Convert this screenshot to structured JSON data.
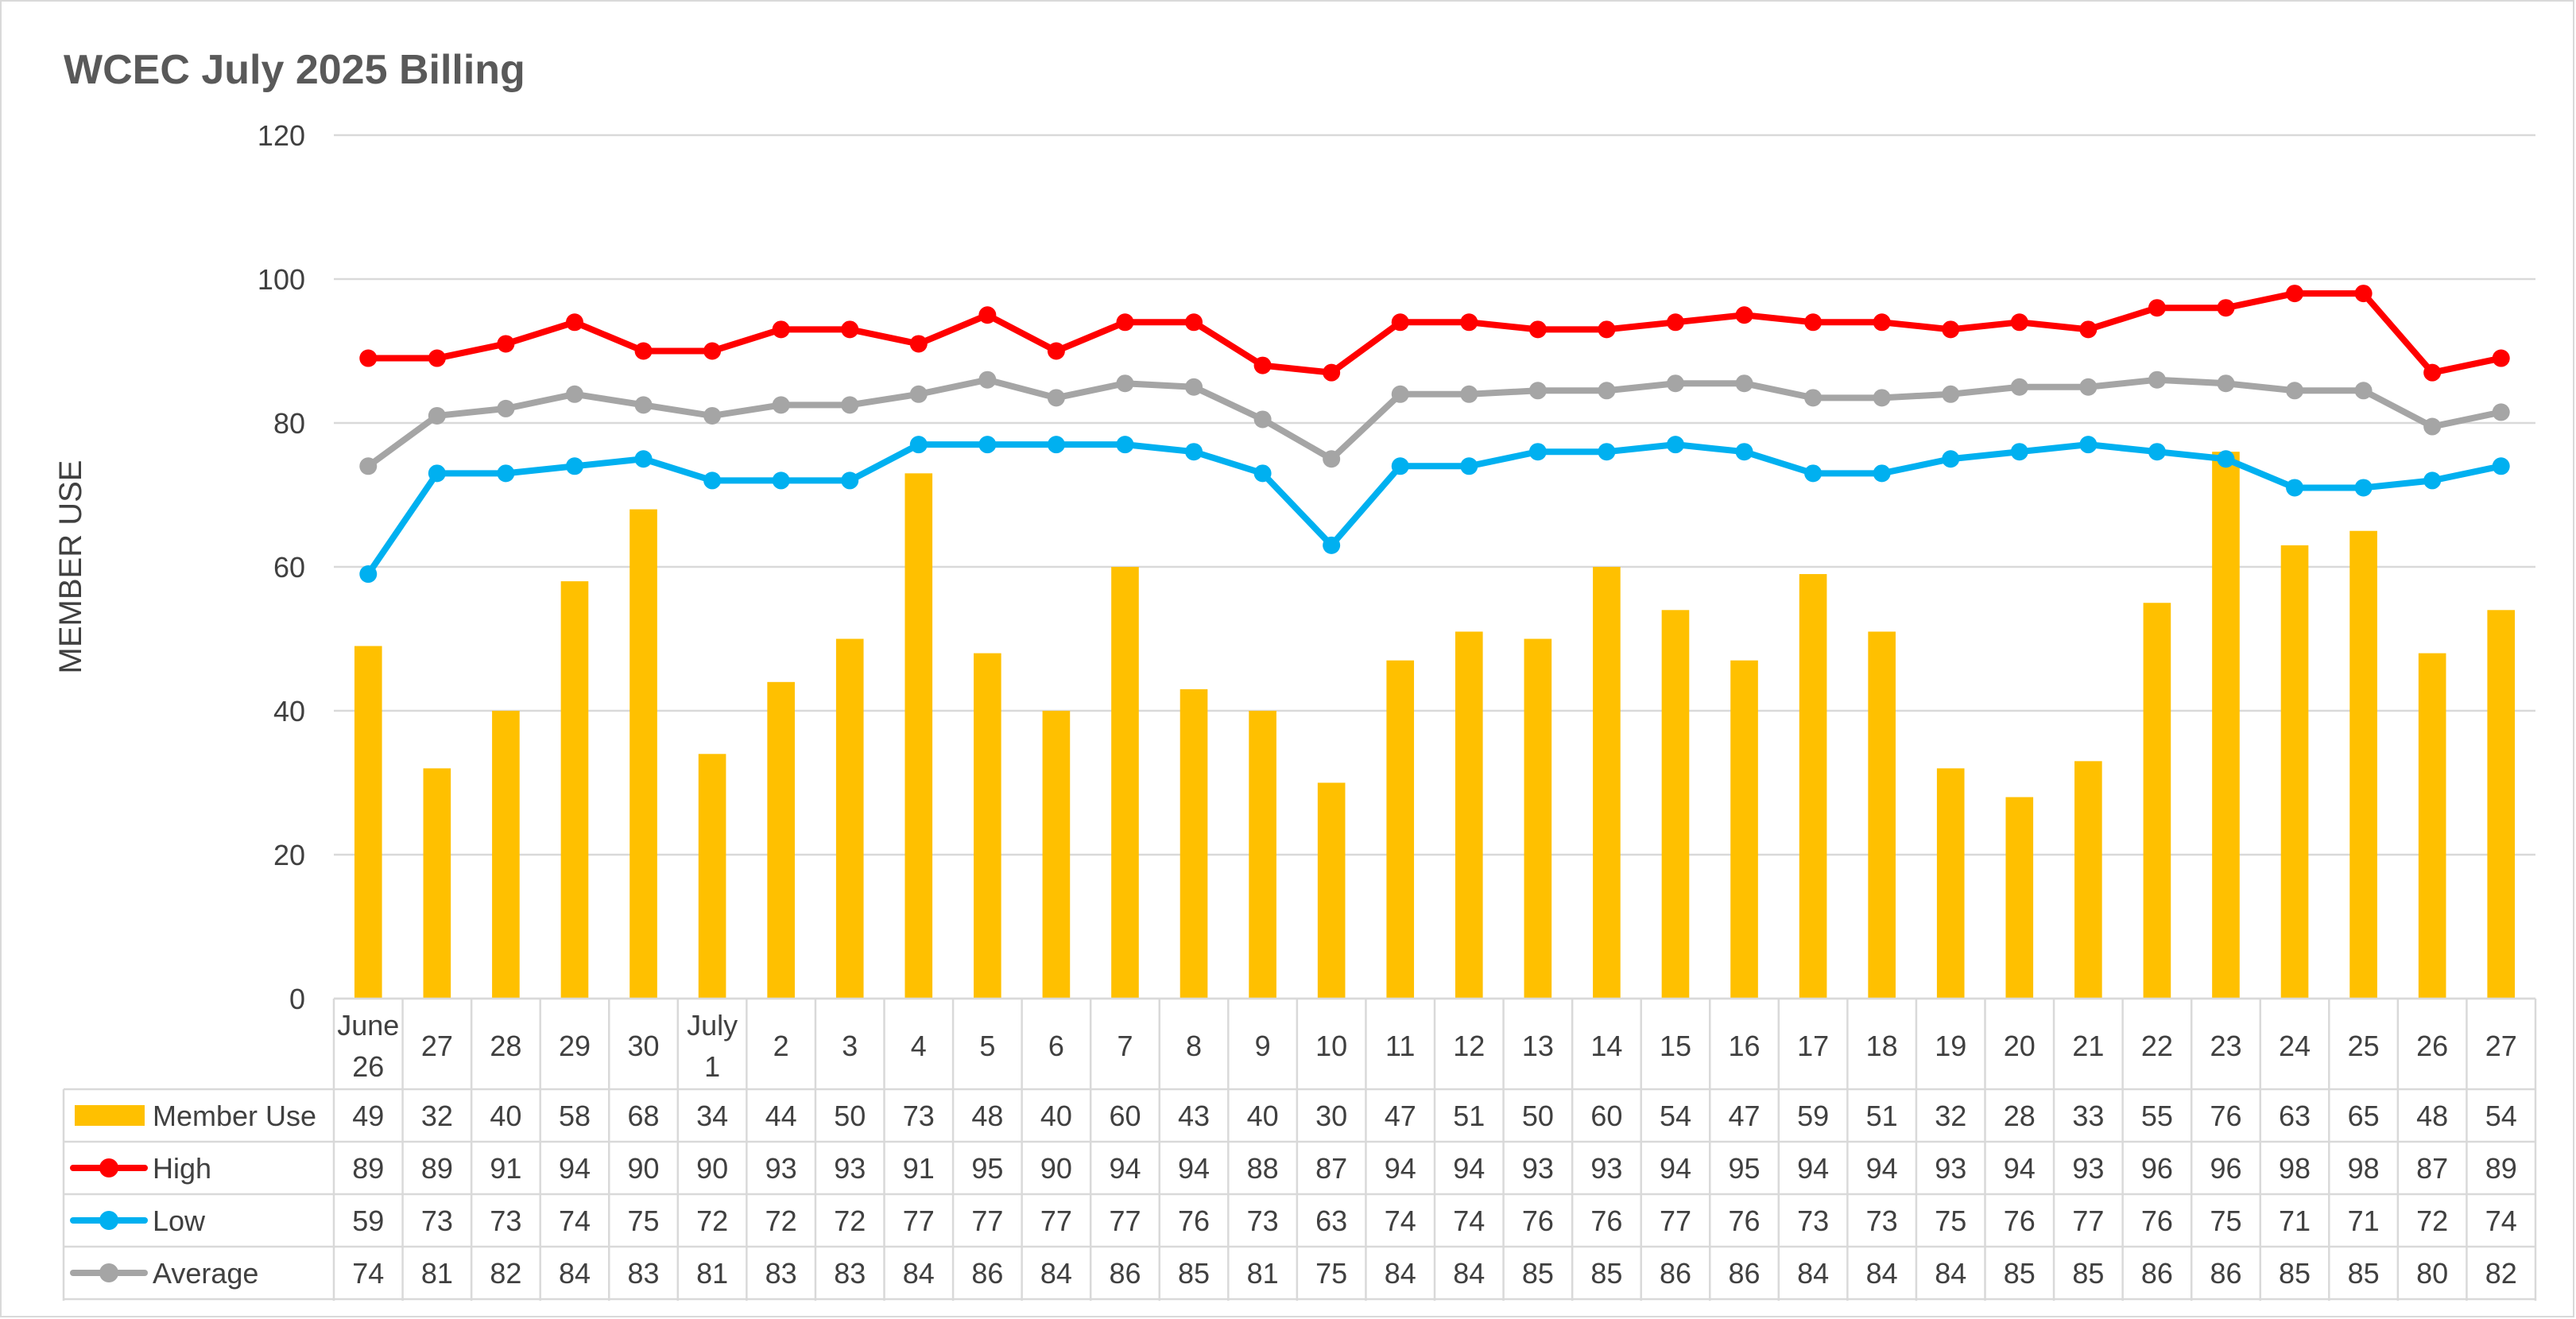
{
  "chart_data": {
    "type": "bar",
    "title": "WCEC July 2025 Billing",
    "ylabel": "MEMBER USE",
    "xlabel": "",
    "ylim": [
      0,
      120
    ],
    "yticks": [
      0,
      20,
      40,
      60,
      80,
      100,
      120
    ],
    "grid": true,
    "legend": "data-table",
    "categories": [
      [
        "June",
        "26"
      ],
      [
        "27"
      ],
      [
        "28"
      ],
      [
        "29"
      ],
      [
        "30"
      ],
      [
        "July",
        "1"
      ],
      [
        "2"
      ],
      [
        "3"
      ],
      [
        "4"
      ],
      [
        "5"
      ],
      [
        "6"
      ],
      [
        "7"
      ],
      [
        "8"
      ],
      [
        "9"
      ],
      [
        "10"
      ],
      [
        "11"
      ],
      [
        "12"
      ],
      [
        "13"
      ],
      [
        "14"
      ],
      [
        "15"
      ],
      [
        "16"
      ],
      [
        "17"
      ],
      [
        "18"
      ],
      [
        "19"
      ],
      [
        "20"
      ],
      [
        "21"
      ],
      [
        "22"
      ],
      [
        "23"
      ],
      [
        "24"
      ],
      [
        "25"
      ],
      [
        "26"
      ],
      [
        "27"
      ]
    ],
    "series": [
      {
        "name": "Member Use",
        "type": "bar",
        "color": "#FFC000",
        "values": [
          49,
          32,
          40,
          58,
          68,
          34,
          44,
          50,
          73,
          48,
          40,
          60,
          43,
          40,
          30,
          47,
          51,
          50,
          60,
          54,
          47,
          59,
          51,
          32,
          28,
          33,
          55,
          76,
          63,
          65,
          48,
          54
        ]
      },
      {
        "name": "High",
        "type": "line",
        "color": "#FF0000",
        "values": [
          89,
          89,
          91,
          94,
          90,
          90,
          93,
          93,
          91,
          95,
          90,
          94,
          94,
          88,
          87,
          94,
          94,
          93,
          93,
          94,
          95,
          94,
          94,
          93,
          94,
          93,
          96,
          96,
          98,
          98,
          87,
          89
        ]
      },
      {
        "name": "Low",
        "type": "line",
        "color": "#00B0F0",
        "values": [
          59,
          73,
          73,
          74,
          75,
          72,
          72,
          72,
          77,
          77,
          77,
          77,
          76,
          73,
          63,
          74,
          74,
          76,
          76,
          77,
          76,
          73,
          73,
          75,
          76,
          77,
          76,
          75,
          71,
          71,
          72,
          74
        ]
      },
      {
        "name": "Average",
        "type": "line",
        "color": "#A5A5A5",
        "values": [
          74,
          81,
          82,
          84,
          82.5,
          81,
          82.5,
          82.5,
          84,
          86,
          83.5,
          85.5,
          85,
          80.5,
          75,
          84,
          84,
          84.5,
          84.5,
          85.5,
          85.5,
          83.5,
          83.5,
          84,
          85,
          85,
          86,
          85.5,
          84.5,
          84.5,
          79.5,
          81.5
        ],
        "table_values": [
          74,
          81,
          82,
          84,
          83,
          81,
          83,
          83,
          84,
          86,
          84,
          86,
          85,
          81,
          75,
          84,
          84,
          85,
          85,
          86,
          86,
          84,
          84,
          84,
          85,
          85,
          86,
          86,
          85,
          85,
          80,
          82
        ]
      }
    ]
  }
}
